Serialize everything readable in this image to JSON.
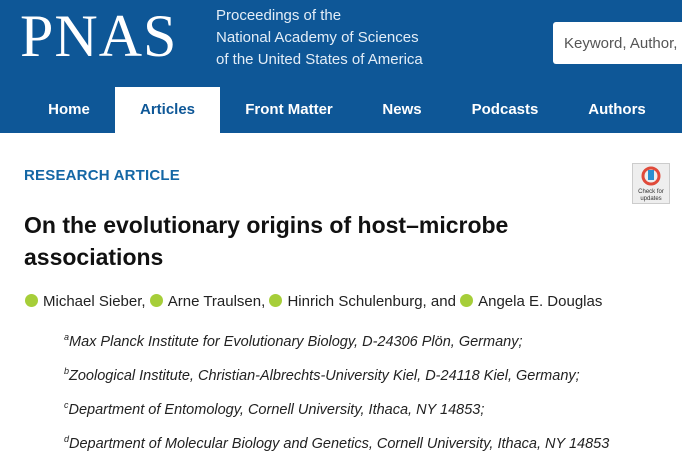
{
  "header": {
    "logo": "PNAS",
    "tagline": [
      "Proceedings of the",
      "National Academy of Sciences",
      "of the United States of America"
    ],
    "search_placeholder": "Keyword, Author,"
  },
  "nav": [
    {
      "label": "Home"
    },
    {
      "label": "Articles",
      "active": true
    },
    {
      "label": "Front Matter"
    },
    {
      "label": "News"
    },
    {
      "label": "Podcasts"
    },
    {
      "label": "Authors"
    }
  ],
  "article": {
    "type_label": "RESEARCH ARTICLE",
    "title": "On the evolutionary origins of host–microbe associations",
    "badge": [
      "Check for",
      "updates"
    ],
    "authors": [
      {
        "name": "Michael Sieber",
        "sep": ","
      },
      {
        "name": "Arne Traulsen",
        "sep": ","
      },
      {
        "name": "Hinrich Schulenburg",
        "sep": ", and"
      },
      {
        "name": "Angela E. Douglas"
      }
    ],
    "affiliations": [
      {
        "mark": "a",
        "text": "Max Planck Institute for Evolutionary Biology, D-24306 Plön, Germany;"
      },
      {
        "mark": "b",
        "text": "Zoological Institute, Christian-Albrechts-University Kiel, D-24118 Kiel, Germany;"
      },
      {
        "mark": "c",
        "text": "Department of Entomology, Cornell University, Ithaca, NY 14853;"
      },
      {
        "mark": "d",
        "text": "Department of Molecular Biology and Genetics, Cornell University, Ithaca, NY 14853"
      }
    ]
  }
}
